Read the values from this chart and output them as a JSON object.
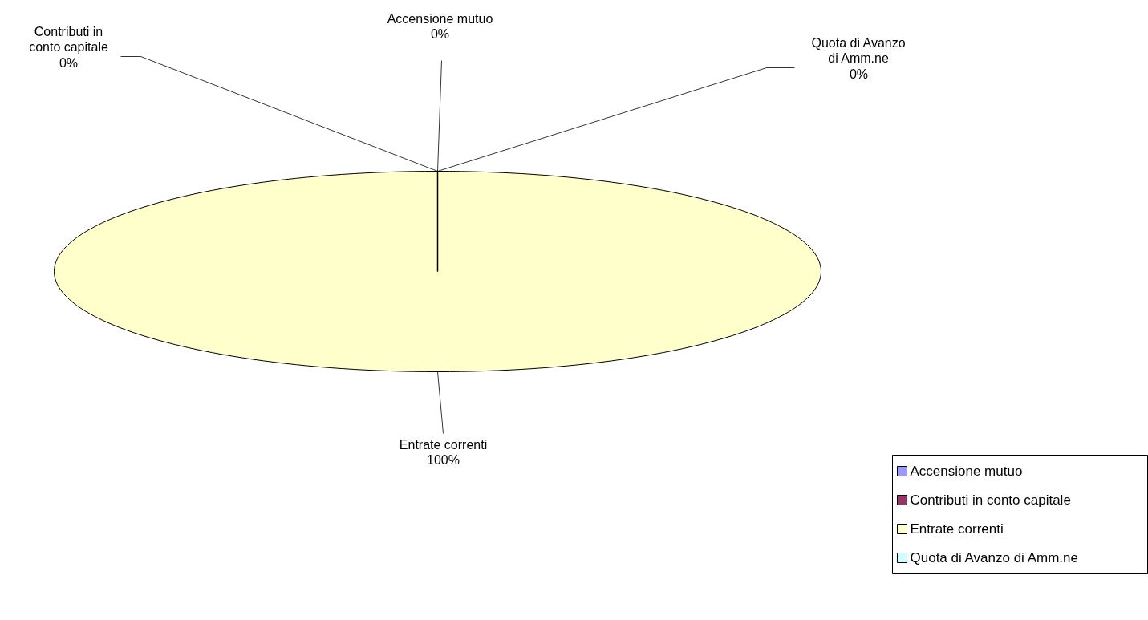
{
  "chart_data": {
    "type": "pie",
    "categories": [
      "Accensione mutuo",
      "Contributi in conto capitale",
      "Entrate correnti",
      "Quota di Avanzo di Amm.ne"
    ],
    "values": [
      0,
      0,
      100,
      0
    ],
    "colors": [
      "#9999ff",
      "#993366",
      "#ffffcc",
      "#ccffff"
    ],
    "value_labels": [
      "0%",
      "0%",
      "100%",
      "0%"
    ],
    "legend": "bottom right"
  }
}
